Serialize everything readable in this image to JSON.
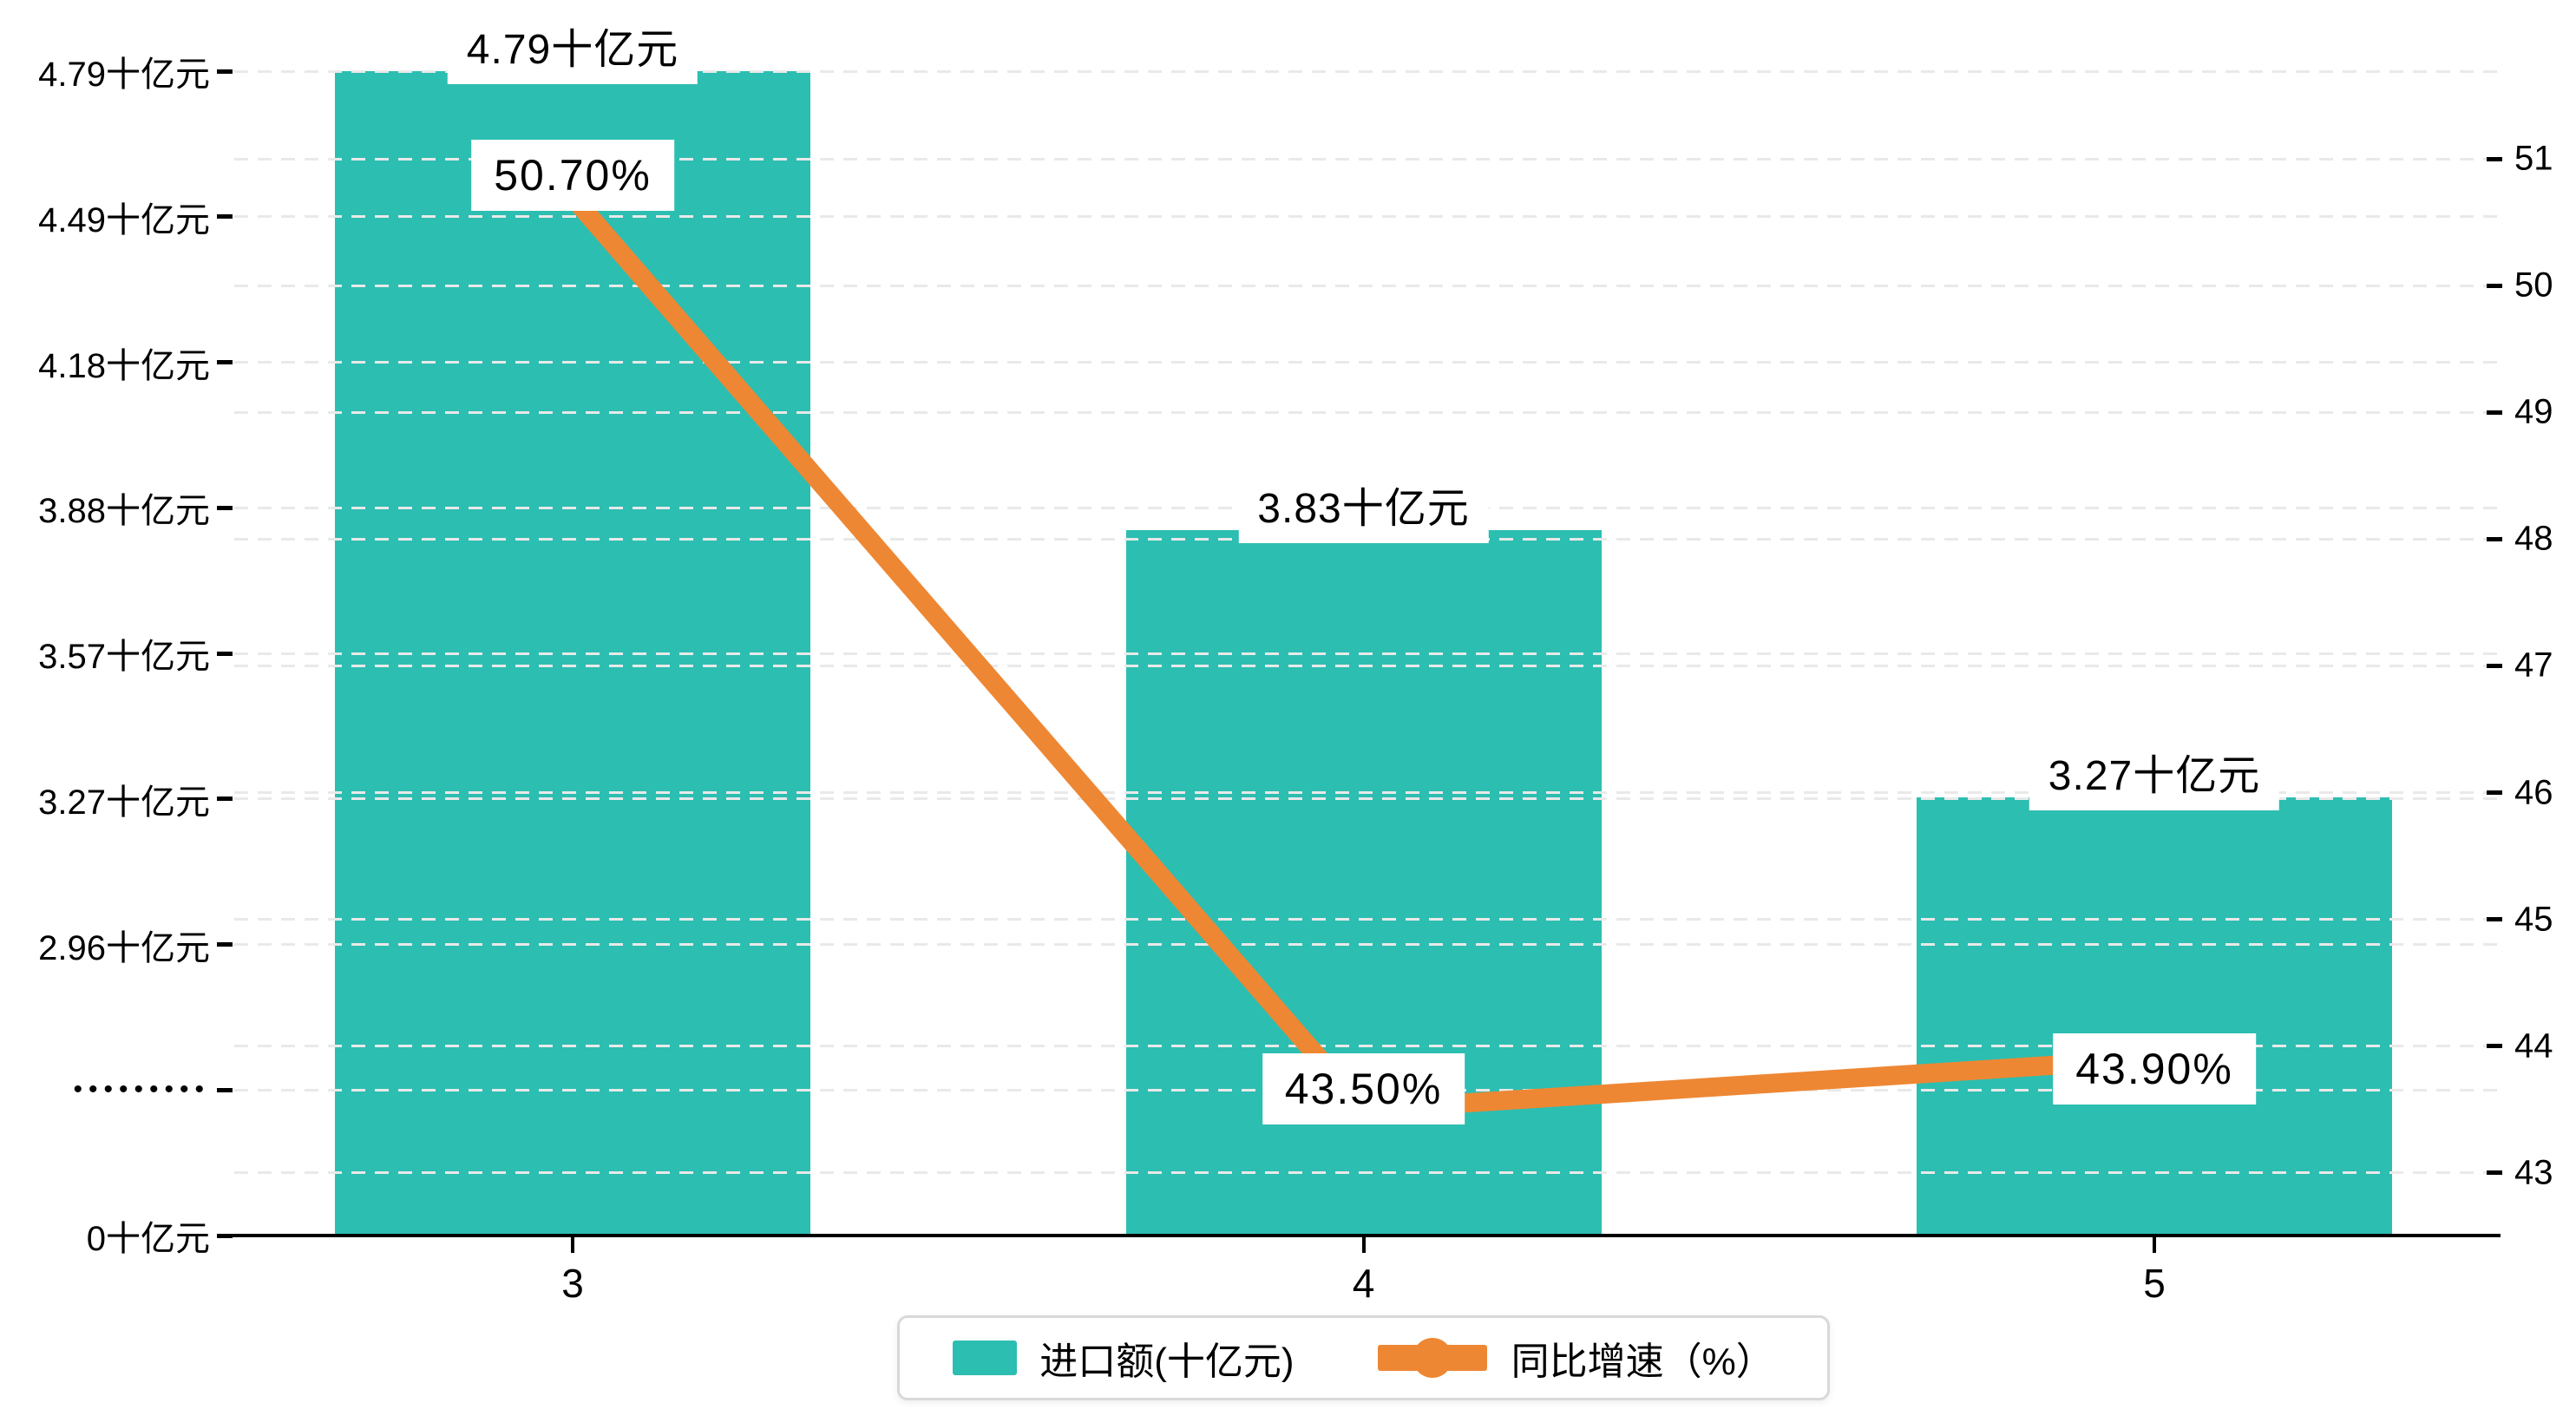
{
  "chart_data": {
    "type": "combo-bar-line",
    "categories": [
      "3",
      "4",
      "5"
    ],
    "series": [
      {
        "name": "进口额(十亿元)",
        "type": "bar",
        "yaxis": "left",
        "values": [
          4.79,
          3.83,
          3.27
        ],
        "data_labels": [
          "4.79十亿元",
          "3.83十亿元",
          "3.27十亿元"
        ],
        "color": "#2CBEB1"
      },
      {
        "name": "同比增速（%）",
        "type": "line",
        "yaxis": "right",
        "values": [
          50.7,
          43.5,
          43.9
        ],
        "data_labels": [
          "50.70%",
          "43.50%",
          "43.90%"
        ],
        "color": "#EE8733"
      }
    ],
    "left_axis": {
      "tick_labels": [
        "4.79十亿元",
        "4.49十亿元",
        "4.18十亿元",
        "3.88十亿元",
        "3.57十亿元",
        "3.27十亿元",
        "2.96十亿元",
        "•••••••••",
        "0十亿元"
      ],
      "tick_values": [
        4.79,
        4.49,
        4.18,
        3.88,
        3.57,
        3.27,
        2.96,
        null,
        0
      ],
      "break_marker_index": 7,
      "value_range_top": [
        2.96,
        4.79
      ]
    },
    "right_axis": {
      "tick_labels": [
        "51",
        "50",
        "49",
        "48",
        "47",
        "46",
        "45",
        "44",
        "43"
      ],
      "min": 43,
      "max": 51
    },
    "x_axis": {
      "tick_labels": [
        "3",
        "4",
        "5"
      ]
    },
    "grid_style": "dashed",
    "legend_position": "bottom"
  },
  "legend": {
    "bar_label": "进口额(十亿元)",
    "line_label": "同比增速（%）"
  },
  "colors": {
    "bar": "#2CBEB1",
    "line": "#EE8733",
    "grid": "#E9E9E9",
    "axis": "#000000",
    "label_background": "#FFFFFF"
  }
}
